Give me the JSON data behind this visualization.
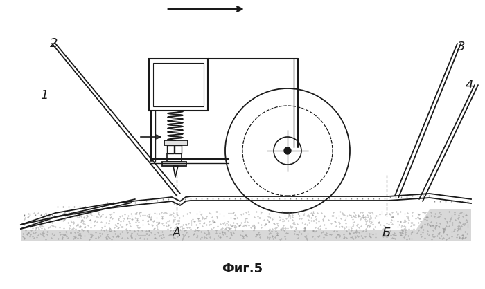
{
  "bg_color": "#ffffff",
  "line_color": "#1a1a1a",
  "title": "Фиг.5",
  "labels": {
    "1": "1",
    "2": "2",
    "3": "3",
    "4": "4",
    "A": "А",
    "B": "Б"
  }
}
